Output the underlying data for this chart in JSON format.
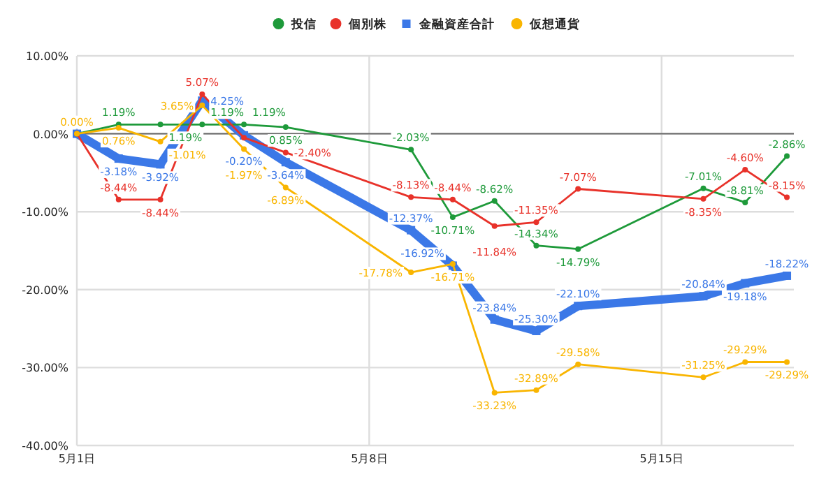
{
  "chart_data": {
    "type": "line",
    "legend": "top",
    "grid": true,
    "marker": "circle",
    "x": [
      "--05-01",
      "--05-02",
      "--05-03",
      "--05-04",
      "--05-05",
      "--05-06",
      "--05-09",
      "--05-10",
      "--05-11",
      "--05-12",
      "--05-13",
      "--05-16",
      "--05-17",
      "--05-18"
    ],
    "xlim": [
      "--05-01",
      "--05-18T04:00"
    ],
    "xticks": [
      {
        "value": "--05-01",
        "label": "5月1日"
      },
      {
        "value": "--05-08",
        "label": "5月8日"
      },
      {
        "value": "--05-15",
        "label": "5月15日"
      }
    ],
    "ylim": [
      -40,
      10
    ],
    "yticks": [
      {
        "value": -40,
        "label": "-40.00%"
      },
      {
        "value": -30,
        "label": "-30.00%"
      },
      {
        "value": -20,
        "label": "-20.00%"
      },
      {
        "value": -10,
        "label": "-10.00%"
      },
      {
        "value": 0,
        "label": "0.00%"
      },
      {
        "value": 10,
        "label": "10.00%"
      }
    ],
    "ref_lines": [
      {
        "axis": "y",
        "value": 0,
        "color": "#666666"
      }
    ],
    "series": [
      {
        "name": "投信",
        "color": "#1e9a3a",
        "values": [
          0,
          1.19,
          1.19,
          1.19,
          1.19,
          0.85,
          -2.03,
          -10.71,
          -8.62,
          -14.34,
          -14.79,
          -7.01,
          -8.81,
          -2.86
        ],
        "value_labels": [
          null,
          "1.19%",
          "1.19%",
          "1.19%",
          "1.19%",
          "0.85%",
          "-2.03%",
          "-10.71%",
          "-8.62%",
          "-14.34%",
          "-14.79%",
          "-7.01%",
          "-8.81%",
          "-2.86%"
        ]
      },
      {
        "name": "個別株",
        "color": "#e8322a",
        "values": [
          0,
          -8.44,
          -8.44,
          5.07,
          -0.5,
          -2.4,
          -8.13,
          -8.44,
          -11.84,
          -11.35,
          -7.07,
          -8.35,
          -4.6,
          -8.15
        ],
        "value_labels": [
          null,
          "-8.44%",
          "-8.44%",
          "5.07%",
          null,
          "-2.40%",
          "-8.13%",
          "-8.44%",
          "-11.84%",
          "-11.35%",
          "-7.07%",
          "-8.35%",
          "-4.60%",
          "-8.15%"
        ]
      },
      {
        "name": "金融資産合計",
        "color": "#3b78e7",
        "marker": "square",
        "values": [
          0,
          -3.18,
          -3.92,
          4.25,
          -0.2,
          -3.64,
          -12.37,
          -16.92,
          -23.84,
          -25.3,
          -22.1,
          -20.84,
          -19.18,
          -18.22
        ],
        "value_labels": [
          null,
          "-3.18%",
          "-3.92%",
          "4.25%",
          "-0.20%",
          "-3.64%",
          "-12.37%",
          "-16.92%",
          "-23.84%",
          "-25.30%",
          "-22.10%",
          "-20.84%",
          "-19.18%",
          "-18.22%"
        ]
      },
      {
        "name": "仮想通貨",
        "color": "#f9b500",
        "values": [
          0,
          0.76,
          -1.01,
          3.65,
          -1.97,
          -6.89,
          -17.78,
          -16.71,
          -33.23,
          -32.89,
          -29.58,
          -31.25,
          -29.29,
          -29.29
        ],
        "value_labels": [
          "0.00%",
          "0.76%",
          "-1.01%",
          "3.65%",
          "-1.97%",
          "-6.89%",
          "-17.78%",
          "-16.71%",
          "-33.23%",
          "-32.89%",
          "-29.58%",
          "-31.25%",
          "-29.29%",
          "-29.29%"
        ]
      }
    ]
  }
}
